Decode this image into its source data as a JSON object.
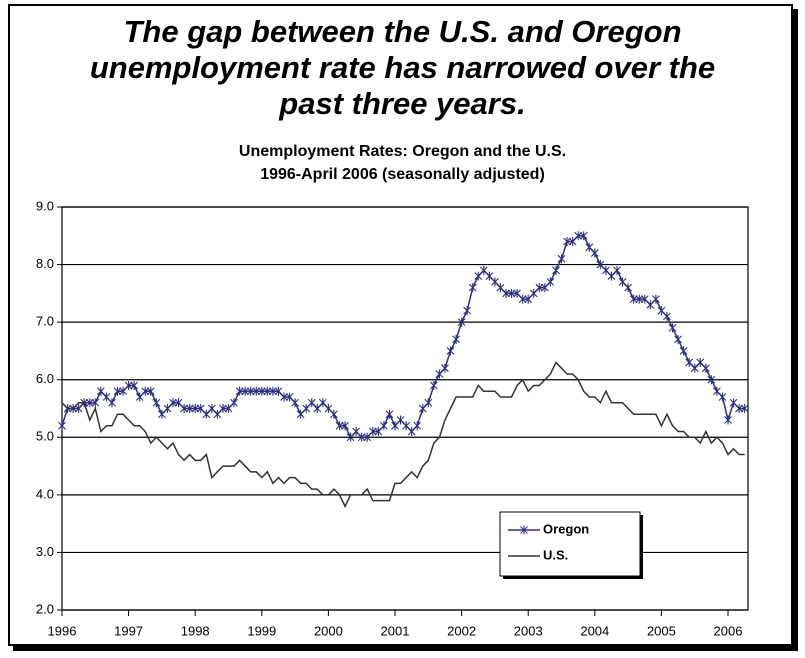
{
  "chart_data": {
    "type": "line",
    "title": "The gap between the U.S. and Oregon unemployment rate has narrowed over the past three years.",
    "subtitle": [
      "Unemployment Rates: Oregon and the U.S.",
      "1996-April 2006 (seasonally adjusted)"
    ],
    "x": [
      1996.0,
      1996.083,
      1996.167,
      1996.25,
      1996.333,
      1996.417,
      1996.5,
      1996.583,
      1996.667,
      1996.75,
      1996.833,
      1996.917,
      1997.0,
      1997.083,
      1997.167,
      1997.25,
      1997.333,
      1997.417,
      1997.5,
      1997.583,
      1997.667,
      1997.75,
      1997.833,
      1997.917,
      1998.0,
      1998.083,
      1998.167,
      1998.25,
      1998.333,
      1998.417,
      1998.5,
      1998.583,
      1998.667,
      1998.75,
      1998.833,
      1998.917,
      1999.0,
      1999.083,
      1999.167,
      1999.25,
      1999.333,
      1999.417,
      1999.5,
      1999.583,
      1999.667,
      1999.75,
      1999.833,
      1999.917,
      2000.0,
      2000.083,
      2000.167,
      2000.25,
      2000.333,
      2000.417,
      2000.5,
      2000.583,
      2000.667,
      2000.75,
      2000.833,
      2000.917,
      2001.0,
      2001.083,
      2001.167,
      2001.25,
      2001.333,
      2001.417,
      2001.5,
      2001.583,
      2001.667,
      2001.75,
      2001.833,
      2001.917,
      2002.0,
      2002.083,
      2002.167,
      2002.25,
      2002.333,
      2002.417,
      2002.5,
      2002.583,
      2002.667,
      2002.75,
      2002.833,
      2002.917,
      2003.0,
      2003.083,
      2003.167,
      2003.25,
      2003.333,
      2003.417,
      2003.5,
      2003.583,
      2003.667,
      2003.75,
      2003.833,
      2003.917,
      2004.0,
      2004.083,
      2004.167,
      2004.25,
      2004.333,
      2004.417,
      2004.5,
      2004.583,
      2004.667,
      2004.75,
      2004.833,
      2004.917,
      2005.0,
      2005.083,
      2005.167,
      2005.25,
      2005.333,
      2005.417,
      2005.5,
      2005.583,
      2005.667,
      2005.75,
      2005.833,
      2005.917,
      2006.0,
      2006.083,
      2006.167,
      2006.25
    ],
    "series": [
      {
        "name": "Oregon",
        "color": "#2e2e80",
        "marker": "asterisk",
        "values": [
          5.2,
          5.5,
          5.5,
          5.5,
          5.6,
          5.6,
          5.6,
          5.8,
          5.7,
          5.6,
          5.8,
          5.8,
          5.9,
          5.9,
          5.7,
          5.8,
          5.8,
          5.6,
          5.4,
          5.5,
          5.6,
          5.6,
          5.5,
          5.5,
          5.5,
          5.5,
          5.4,
          5.5,
          5.4,
          5.5,
          5.5,
          5.6,
          5.8,
          5.8,
          5.8,
          5.8,
          5.8,
          5.8,
          5.8,
          5.8,
          5.7,
          5.7,
          5.6,
          5.4,
          5.5,
          5.6,
          5.5,
          5.6,
          5.5,
          5.4,
          5.2,
          5.2,
          5.0,
          5.1,
          5.0,
          5.0,
          5.1,
          5.1,
          5.2,
          5.4,
          5.2,
          5.3,
          5.2,
          5.1,
          5.2,
          5.5,
          5.6,
          5.9,
          6.1,
          6.2,
          6.5,
          6.7,
          7.0,
          7.2,
          7.6,
          7.8,
          7.9,
          7.8,
          7.7,
          7.6,
          7.5,
          7.5,
          7.5,
          7.4,
          7.4,
          7.5,
          7.6,
          7.6,
          7.7,
          7.9,
          8.1,
          8.4,
          8.4,
          8.5,
          8.5,
          8.3,
          8.2,
          8.0,
          7.9,
          7.8,
          7.9,
          7.7,
          7.6,
          7.4,
          7.4,
          7.4,
          7.3,
          7.4,
          7.2,
          7.1,
          6.9,
          6.7,
          6.5,
          6.3,
          6.2,
          6.3,
          6.2,
          6.0,
          5.8,
          5.7,
          5.3,
          5.6,
          5.5,
          5.5
        ]
      },
      {
        "name": "U.S.",
        "color": "#333333",
        "values": [
          5.6,
          5.5,
          5.5,
          5.6,
          5.6,
          5.3,
          5.5,
          5.1,
          5.2,
          5.2,
          5.4,
          5.4,
          5.3,
          5.2,
          5.2,
          5.1,
          4.9,
          5.0,
          4.9,
          4.8,
          4.9,
          4.7,
          4.6,
          4.7,
          4.6,
          4.6,
          4.7,
          4.3,
          4.4,
          4.5,
          4.5,
          4.5,
          4.6,
          4.5,
          4.4,
          4.4,
          4.3,
          4.4,
          4.2,
          4.3,
          4.2,
          4.3,
          4.3,
          4.2,
          4.2,
          4.1,
          4.1,
          4.0,
          4.0,
          4.1,
          4.0,
          3.8,
          4.0,
          4.0,
          4.0,
          4.1,
          3.9,
          3.9,
          3.9,
          3.9,
          4.2,
          4.2,
          4.3,
          4.4,
          4.3,
          4.5,
          4.6,
          4.9,
          5.0,
          5.3,
          5.5,
          5.7,
          5.7,
          5.7,
          5.7,
          5.9,
          5.8,
          5.8,
          5.8,
          5.7,
          5.7,
          5.7,
          5.9,
          6.0,
          5.8,
          5.9,
          5.9,
          6.0,
          6.1,
          6.3,
          6.2,
          6.1,
          6.1,
          6.0,
          5.8,
          5.7,
          5.7,
          5.6,
          5.8,
          5.6,
          5.6,
          5.6,
          5.5,
          5.4,
          5.4,
          5.4,
          5.4,
          5.4,
          5.2,
          5.4,
          5.2,
          5.1,
          5.1,
          5.0,
          5.0,
          4.9,
          5.1,
          4.9,
          5.0,
          4.9,
          4.7,
          4.8,
          4.7,
          4.7
        ]
      }
    ],
    "xlim": [
      1996,
      2006.3
    ],
    "xticks": [
      1996,
      1997,
      1998,
      1999,
      2000,
      2001,
      2002,
      2003,
      2004,
      2005,
      2006
    ],
    "ylim": [
      2,
      9
    ],
    "yticks": [
      {
        "value": 2,
        "label": "2.0"
      },
      {
        "value": 3,
        "label": "3.0"
      },
      {
        "value": 4,
        "label": "4.0"
      },
      {
        "value": 5,
        "label": "5.0"
      },
      {
        "value": 6,
        "label": "6.0"
      },
      {
        "value": 7,
        "label": "7.0"
      },
      {
        "value": 8,
        "label": "8.0"
      },
      {
        "value": 9,
        "label": "9.0"
      }
    ],
    "grid": true,
    "legend": "lower right"
  }
}
